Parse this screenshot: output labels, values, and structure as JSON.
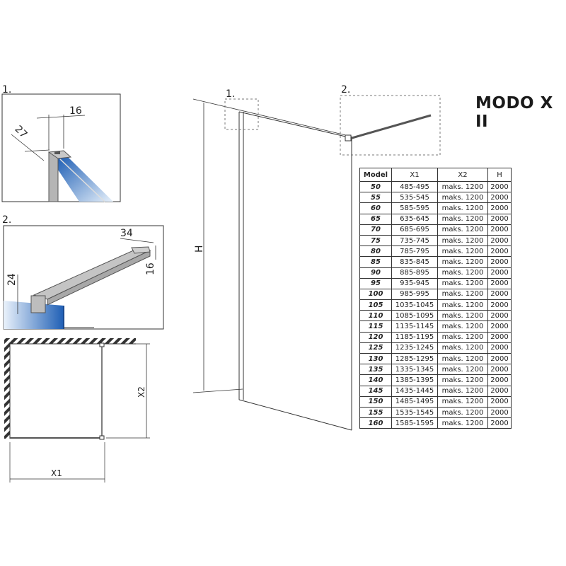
{
  "title": "MODO X II",
  "detail_labels": {
    "detail1": "1.",
    "detail2": "2."
  },
  "detail1_dims": {
    "width": "16",
    "depth": "27"
  },
  "detail2_dims": {
    "length": "34",
    "height_right": "16",
    "height_left": "24"
  },
  "plan_dims": {
    "x1": "X1",
    "x2": "X2"
  },
  "elevation_dims": {
    "h": "H"
  },
  "table": {
    "headers": [
      "Model",
      "X1",
      "X2",
      "H"
    ],
    "rows": [
      [
        "50",
        "485-495",
        "maks. 1200",
        "2000"
      ],
      [
        "55",
        "535-545",
        "maks. 1200",
        "2000"
      ],
      [
        "60",
        "585-595",
        "maks. 1200",
        "2000"
      ],
      [
        "65",
        "635-645",
        "maks. 1200",
        "2000"
      ],
      [
        "70",
        "685-695",
        "maks. 1200",
        "2000"
      ],
      [
        "75",
        "735-745",
        "maks. 1200",
        "2000"
      ],
      [
        "80",
        "785-795",
        "maks. 1200",
        "2000"
      ],
      [
        "85",
        "835-845",
        "maks. 1200",
        "2000"
      ],
      [
        "90",
        "885-895",
        "maks. 1200",
        "2000"
      ],
      [
        "95",
        "935-945",
        "maks. 1200",
        "2000"
      ],
      [
        "100",
        "985-995",
        "maks. 1200",
        "2000"
      ],
      [
        "105",
        "1035-1045",
        "maks. 1200",
        "2000"
      ],
      [
        "110",
        "1085-1095",
        "maks. 1200",
        "2000"
      ],
      [
        "115",
        "1135-1145",
        "maks. 1200",
        "2000"
      ],
      [
        "120",
        "1185-1195",
        "maks. 1200",
        "2000"
      ],
      [
        "125",
        "1235-1245",
        "maks. 1200",
        "2000"
      ],
      [
        "130",
        "1285-1295",
        "maks. 1200",
        "2000"
      ],
      [
        "135",
        "1335-1345",
        "maks. 1200",
        "2000"
      ],
      [
        "140",
        "1385-1395",
        "maks. 1200",
        "2000"
      ],
      [
        "145",
        "1435-1445",
        "maks. 1200",
        "2000"
      ],
      [
        "150",
        "1485-1495",
        "maks. 1200",
        "2000"
      ],
      [
        "155",
        "1535-1545",
        "maks. 1200",
        "2000"
      ],
      [
        "160",
        "1585-1595",
        "maks. 1200",
        "2000"
      ]
    ]
  },
  "colors": {
    "glass": "#2f6fc0",
    "metal": "#b8b8b8",
    "line": "#333333"
  }
}
